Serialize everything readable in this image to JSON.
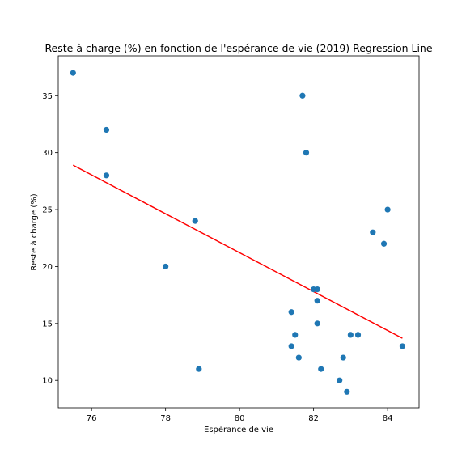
{
  "chart_data": {
    "type": "scatter",
    "title": "Reste à charge (%) en fonction de l'espérance de vie (2019) Regression Line",
    "xlabel": "Espérance de vie",
    "ylabel": "Reste à charge (%)",
    "xlim": [
      75.1,
      84.85
    ],
    "ylim": [
      7.6,
      38.5
    ],
    "x_ticks": [
      76,
      78,
      80,
      82,
      84
    ],
    "y_ticks": [
      10,
      15,
      20,
      25,
      30,
      35
    ],
    "grid": false,
    "colors": {
      "points": "#1f77b4",
      "regression": "#ff0000"
    },
    "points": [
      {
        "x": 75.5,
        "y": 37
      },
      {
        "x": 76.4,
        "y": 32
      },
      {
        "x": 76.4,
        "y": 28
      },
      {
        "x": 78.0,
        "y": 20
      },
      {
        "x": 78.8,
        "y": 24
      },
      {
        "x": 78.9,
        "y": 11
      },
      {
        "x": 81.4,
        "y": 16
      },
      {
        "x": 81.4,
        "y": 13
      },
      {
        "x": 81.5,
        "y": 14
      },
      {
        "x": 81.6,
        "y": 12
      },
      {
        "x": 81.7,
        "y": 35
      },
      {
        "x": 81.8,
        "y": 30
      },
      {
        "x": 82.0,
        "y": 18
      },
      {
        "x": 82.1,
        "y": 18
      },
      {
        "x": 82.1,
        "y": 17
      },
      {
        "x": 82.1,
        "y": 15
      },
      {
        "x": 82.2,
        "y": 11
      },
      {
        "x": 82.7,
        "y": 10
      },
      {
        "x": 82.8,
        "y": 12
      },
      {
        "x": 82.9,
        "y": 9
      },
      {
        "x": 83.0,
        "y": 14
      },
      {
        "x": 83.2,
        "y": 14
      },
      {
        "x": 83.6,
        "y": 23
      },
      {
        "x": 83.9,
        "y": 22
      },
      {
        "x": 84.0,
        "y": 25
      },
      {
        "x": 84.4,
        "y": 13
      }
    ],
    "regression_line": [
      {
        "x": 75.5,
        "y": 28.9
      },
      {
        "x": 84.4,
        "y": 13.7
      }
    ]
  }
}
